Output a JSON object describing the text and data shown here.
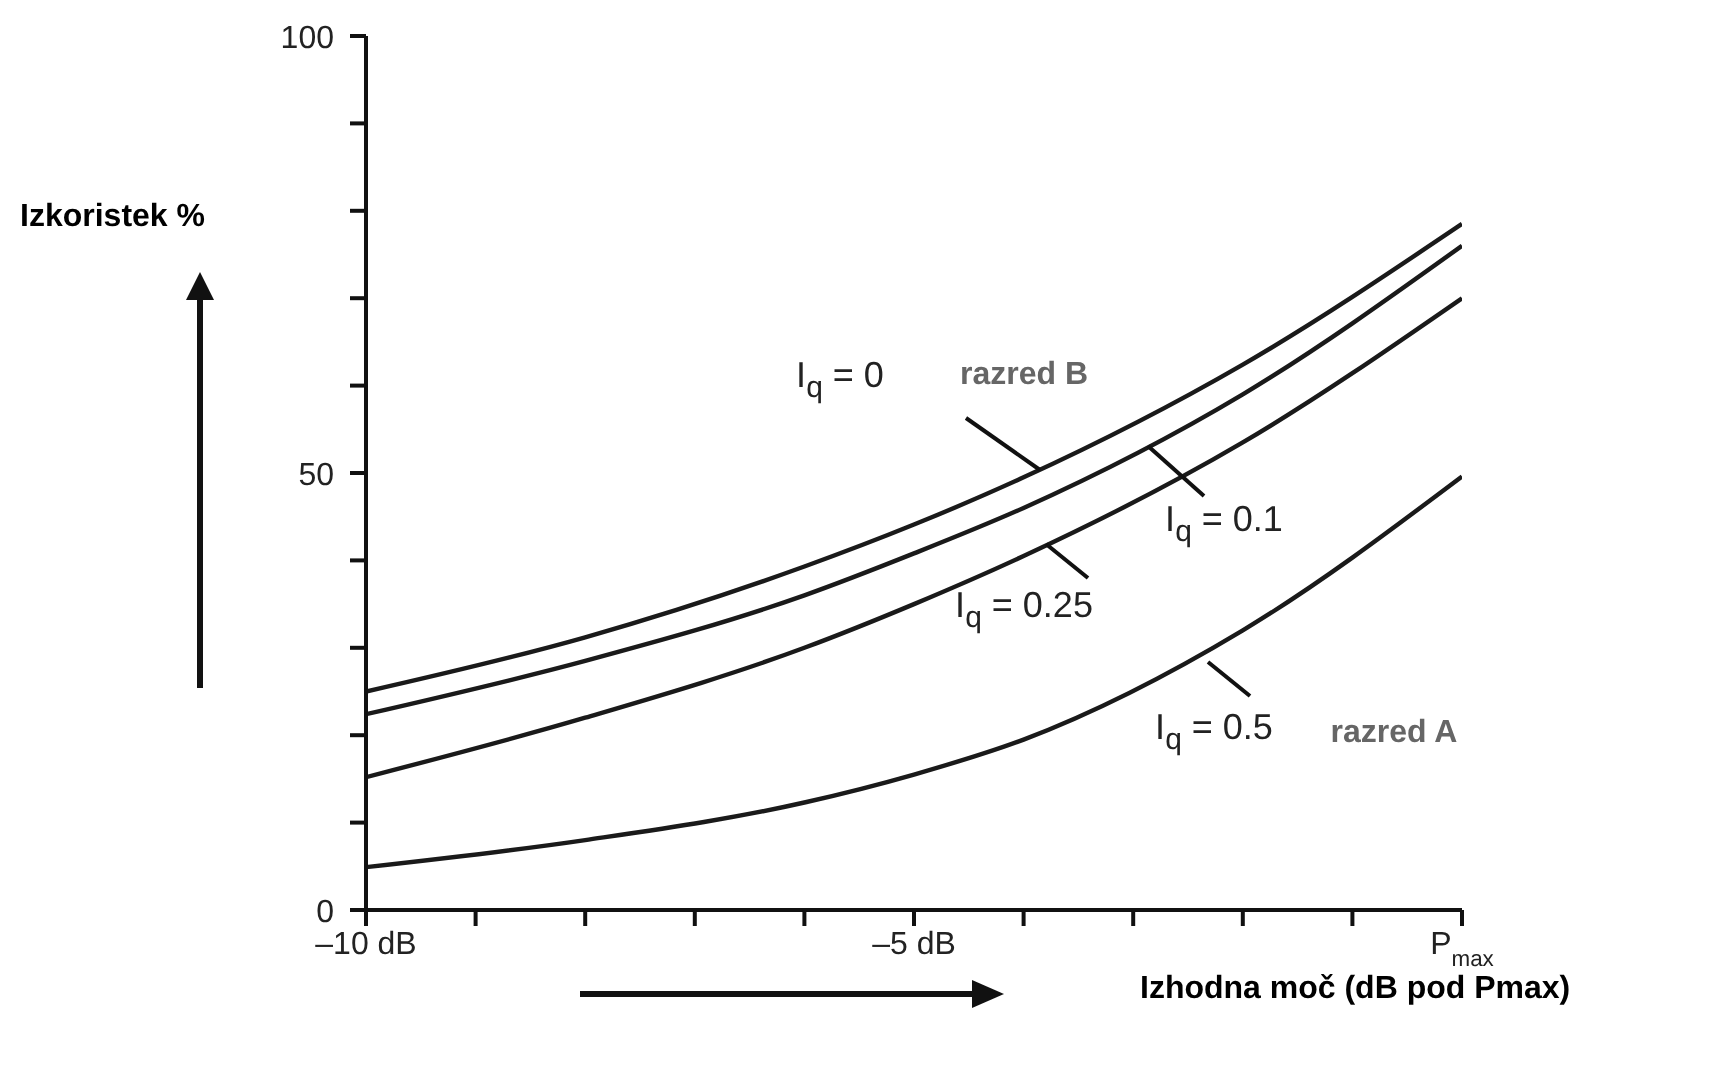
{
  "chart_data": {
    "type": "line",
    "xlabel": "Izhodna moč (dB pod Pmax)",
    "ylabel": "Izkoristek %",
    "xlim": [
      -10,
      0
    ],
    "xticks": [
      {
        "value": -10,
        "label": "–10 dB"
      },
      {
        "value": -9,
        "label": null
      },
      {
        "value": -8,
        "label": null
      },
      {
        "value": -7,
        "label": null
      },
      {
        "value": -6,
        "label": null
      },
      {
        "value": -5,
        "label": "–5 dB"
      },
      {
        "value": -4,
        "label": null
      },
      {
        "value": -3,
        "label": null
      },
      {
        "value": -2,
        "label": null
      },
      {
        "value": -1,
        "label": null
      },
      {
        "value": 0,
        "label": "P$_{max}$"
      }
    ],
    "ylim": [
      0,
      100
    ],
    "yticks": [
      0,
      {
        "value": 10,
        "label": null
      },
      {
        "value": 20,
        "label": null
      },
      {
        "value": 30,
        "label": null
      },
      {
        "value": 40,
        "label": null
      },
      50,
      {
        "value": 60,
        "label": null
      },
      {
        "value": 70,
        "label": null
      },
      {
        "value": 80,
        "label": null
      },
      {
        "value": 90,
        "label": null
      },
      100
    ],
    "x": [
      -10,
      -8,
      -6,
      -5,
      -4,
      -2,
      0
    ],
    "series": [
      {
        "color": "#1a1a1a",
        "values": [
          25,
          31.2,
          39.3,
          44.1,
          49.5,
          62.4,
          78.5
        ]
      },
      {
        "color": "#1a1a1a",
        "values": [
          22.4,
          28.5,
          36,
          40.8,
          46,
          59,
          76
        ]
      },
      {
        "color": "#1a1a1a",
        "values": [
          15.2,
          22,
          30,
          35,
          40.5,
          53.5,
          70
        ]
      },
      {
        "color": "#1a1a1a",
        "values": [
          4.9,
          8,
          12.3,
          15.5,
          19.5,
          32,
          49.6
        ]
      }
    ],
    "marker": "none",
    "line_style": "solid",
    "grid": false,
    "annotations": [
      "I$_{q}$ = 0",
      "razred B",
      "I$_{q}$ = 0.1",
      "I$_{q}$ = 0.25",
      "I$_{q}$ = 0.5",
      "razred A"
    ]
  }
}
